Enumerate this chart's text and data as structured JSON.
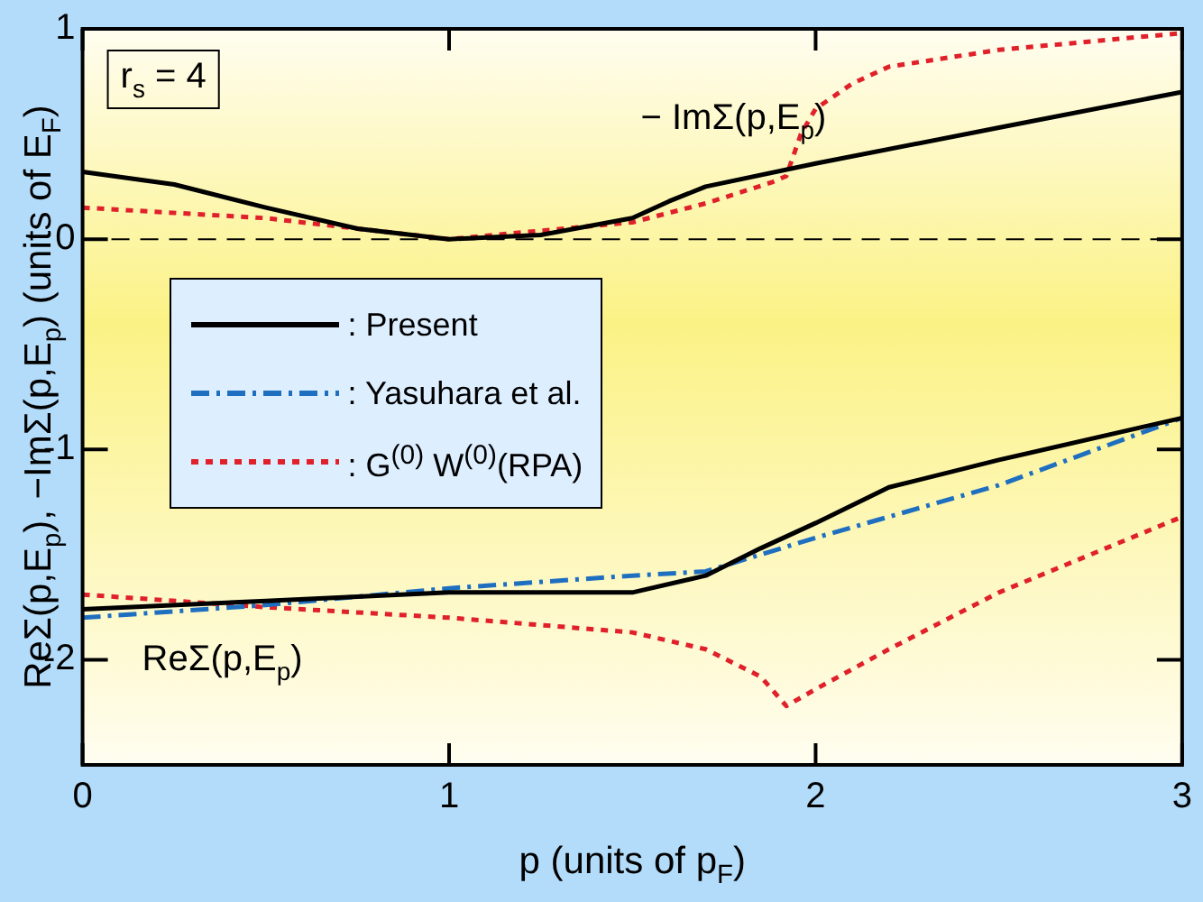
{
  "chart_data": {
    "type": "line",
    "xlabel": "p (units of p$_{F}$)",
    "ylabel": "ReΣ(p,E$_{p}$), −ImΣ(p,E$_{p}$) (units of E$_{F}$)",
    "xlim": [
      0,
      3
    ],
    "xticks": [
      0,
      1,
      2,
      3
    ],
    "ylim": [
      -2.5,
      1
    ],
    "yticks": [
      1,
      0,
      -1,
      -2
    ],
    "grid": false,
    "legend": "left",
    "marker": "none",
    "series": [
      {
        "name": ": Present",
        "color": "#000000",
        "line_style": "solid",
        "x": [
          0,
          0.25,
          0.5,
          0.75,
          1,
          1.25,
          1.5,
          1.6,
          1.7,
          2,
          2.5,
          3
        ],
        "values": [
          0.32,
          0.26,
          0.15,
          0.05,
          0,
          0.02,
          0.1,
          0.18,
          0.25,
          0.36,
          0.53,
          0.7
        ]
      },
      {
        "color": "#000000",
        "line_style": "solid",
        "x": [
          0,
          0.5,
          1,
          1.5,
          1.7,
          1.85,
          2,
          2.2,
          2.5,
          3
        ],
        "values": [
          -1.76,
          -1.72,
          -1.68,
          -1.68,
          -1.6,
          -1.47,
          -1.35,
          -1.18,
          -1.05,
          -0.85
        ]
      },
      {
        "name": ": Yasuhara et al.",
        "color": "#1f6fc0",
        "line_style": "dashdot",
        "x": [
          0,
          0.5,
          1,
          1.5,
          1.7,
          2,
          2.5,
          3
        ],
        "values": [
          -1.8,
          -1.74,
          -1.66,
          -1.6,
          -1.58,
          -1.42,
          -1.17,
          -0.85
        ]
      },
      {
        "name": ": G$^{(0)}$ W$^{(0)}$(RPA)",
        "color": "#e0202a",
        "line_style": "dotted",
        "x": [
          0,
          0.5,
          1,
          1.5,
          1.7,
          1.88,
          1.92,
          1.96,
          2,
          2.1,
          2.2,
          2.5,
          3
        ],
        "values": [
          0.15,
          0.1,
          0,
          0.08,
          0.17,
          0.27,
          0.3,
          0.5,
          0.62,
          0.74,
          0.82,
          0.9,
          0.98
        ]
      },
      {
        "color": "#e0202a",
        "line_style": "dotted",
        "x": [
          0,
          0.5,
          1,
          1.5,
          1.7,
          1.85,
          1.92,
          2,
          2.2,
          2.5,
          3
        ],
        "values": [
          -1.69,
          -1.75,
          -1.8,
          -1.87,
          -1.95,
          -2.08,
          -2.22,
          -2.14,
          -1.95,
          -1.68,
          -1.32
        ]
      }
    ],
    "ref_lines": [
      {
        "axis": "y",
        "value": 0,
        "color": "#000000",
        "line_style": "dashed"
      }
    ],
    "annotations": [
      "r$_{s}$ = 4",
      "− ImΣ(p,E$_{p}$)",
      "ReΣ(p,E$_{p}$)"
    ]
  }
}
